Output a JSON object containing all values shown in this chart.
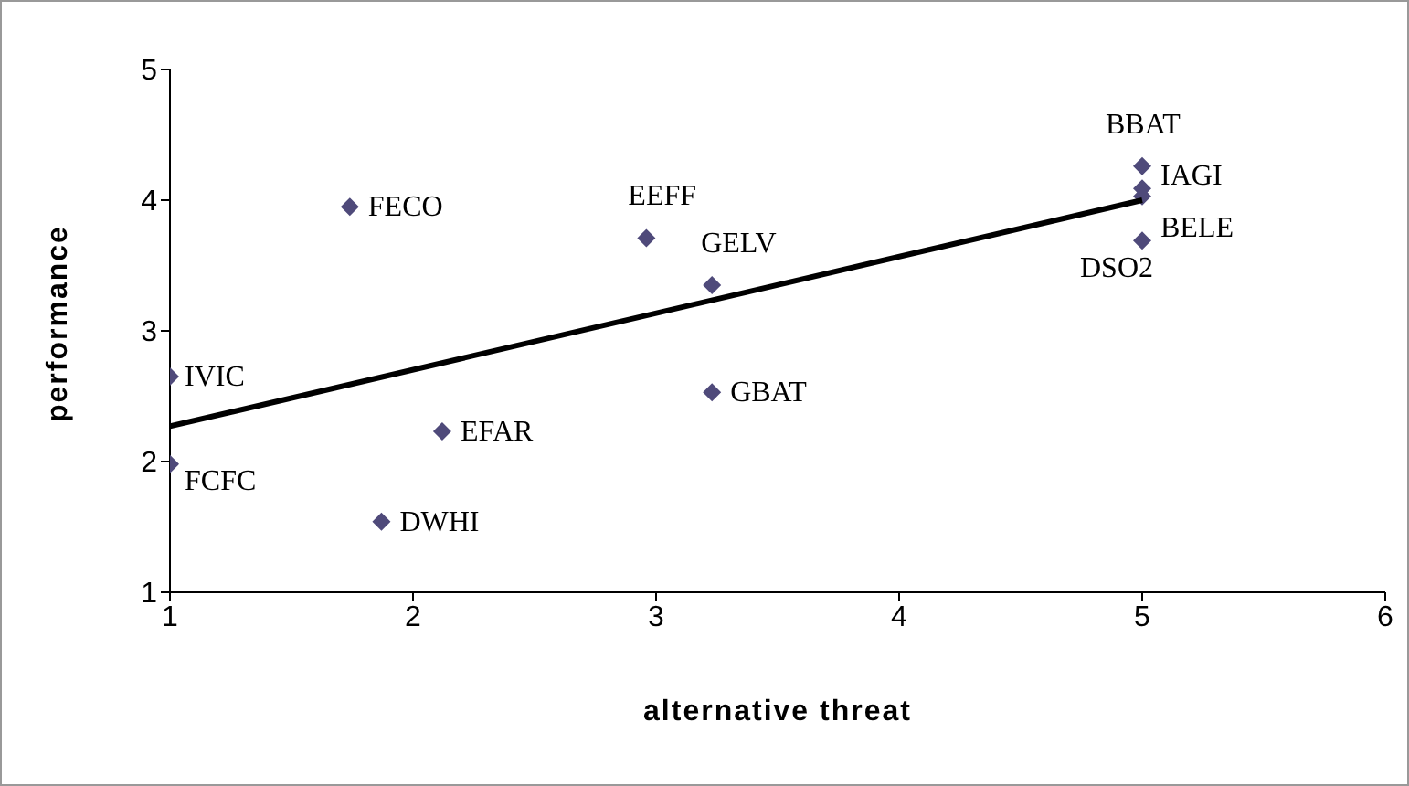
{
  "chart_data": {
    "type": "scatter",
    "xlabel": "alternative threat",
    "ylabel": "performance",
    "marker": "diamond",
    "xlim": [
      1,
      6
    ],
    "xticks": [
      1,
      2,
      3,
      4,
      5,
      6
    ],
    "ylim": [
      1,
      5
    ],
    "yticks": [
      1,
      2,
      3,
      4,
      5
    ],
    "series": [
      {
        "color": "#4f4a7a",
        "x": [
          1.74,
          2.96,
          3.23,
          1,
          3.23,
          2.12,
          1,
          1.87,
          5,
          5,
          5,
          5
        ],
        "values": [
          3.95,
          3.71,
          3.35,
          2.65,
          2.53,
          2.23,
          1.98,
          1.54,
          4.26,
          4.09,
          4.03,
          3.69
        ]
      },
      {
        "type": "line",
        "marker": "none",
        "color": "#000000",
        "x": [
          1,
          5
        ],
        "values": [
          2.27,
          4.0
        ]
      }
    ],
    "annotations": [
      {
        "text": "FECO",
        "x": 1.74,
        "y": 3.95
      },
      {
        "text": "EEFF",
        "x": 2.96,
        "y": 3.71
      },
      {
        "text": "GELV",
        "x": 3.23,
        "y": 3.35
      },
      {
        "text": "IVIC",
        "x": 1,
        "y": 2.65
      },
      {
        "text": "GBAT",
        "x": 3.23,
        "y": 2.53
      },
      {
        "text": "EFAR",
        "x": 2.12,
        "y": 2.23
      },
      {
        "text": "FCFC",
        "x": 1,
        "y": 1.98
      },
      {
        "text": "DWHI",
        "x": 1.87,
        "y": 1.54
      },
      {
        "text": "BBAT",
        "x": 5,
        "y": 4.26
      },
      {
        "text": "IAGI",
        "x": 5,
        "y": 4.09
      },
      {
        "text": "BELE",
        "x": 5,
        "y": 4.03
      },
      {
        "text": "DSO2",
        "x": 5,
        "y": 3.69
      }
    ]
  }
}
